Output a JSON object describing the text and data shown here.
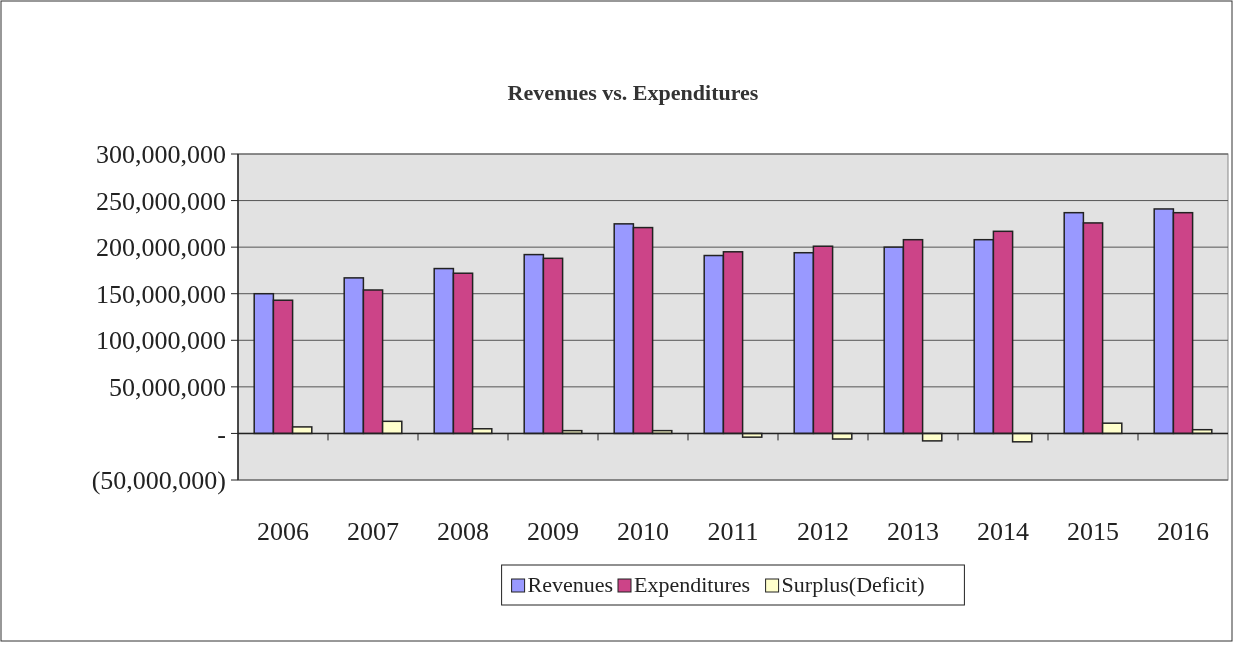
{
  "chart_data": {
    "type": "bar",
    "title": "Revenues vs. Expenditures",
    "categories": [
      "2006",
      "2007",
      "2008",
      "2009",
      "2010",
      "2011",
      "2012",
      "2013",
      "2014",
      "2015",
      "2016"
    ],
    "series": [
      {
        "name": "Revenues",
        "color": "#9999ff",
        "values": [
          150000000,
          167000000,
          177000000,
          192000000,
          225000000,
          191000000,
          194000000,
          200000000,
          208000000,
          237000000,
          241000000
        ]
      },
      {
        "name": "Expenditures",
        "color": "#cc4488",
        "values": [
          143000000,
          154000000,
          172000000,
          188000000,
          221000000,
          195000000,
          201000000,
          208000000,
          217000000,
          226000000,
          237000000
        ]
      },
      {
        "name": "Surplus(Deficit)",
        "color": "#ffffcc",
        "values": [
          7000000,
          13000000,
          5000000,
          3000000,
          3000000,
          -4000000,
          -6000000,
          -8000000,
          -9000000,
          11000000,
          4000000
        ]
      }
    ],
    "ylim": [
      -50000000,
      300000000
    ],
    "yticks": [
      {
        "value": 300000000,
        "label": "300,000,000"
      },
      {
        "value": 250000000,
        "label": "250,000,000"
      },
      {
        "value": 200000000,
        "label": "200,000,000"
      },
      {
        "value": 150000000,
        "label": "150,000,000"
      },
      {
        "value": 100000000,
        "label": "100,000,000"
      },
      {
        "value": 50000000,
        "label": "50,000,000"
      },
      {
        "value": 0,
        "label": "-"
      },
      {
        "value": -50000000,
        "label": "(50,000,000)"
      }
    ],
    "grid": "y",
    "legend": "bottom"
  }
}
